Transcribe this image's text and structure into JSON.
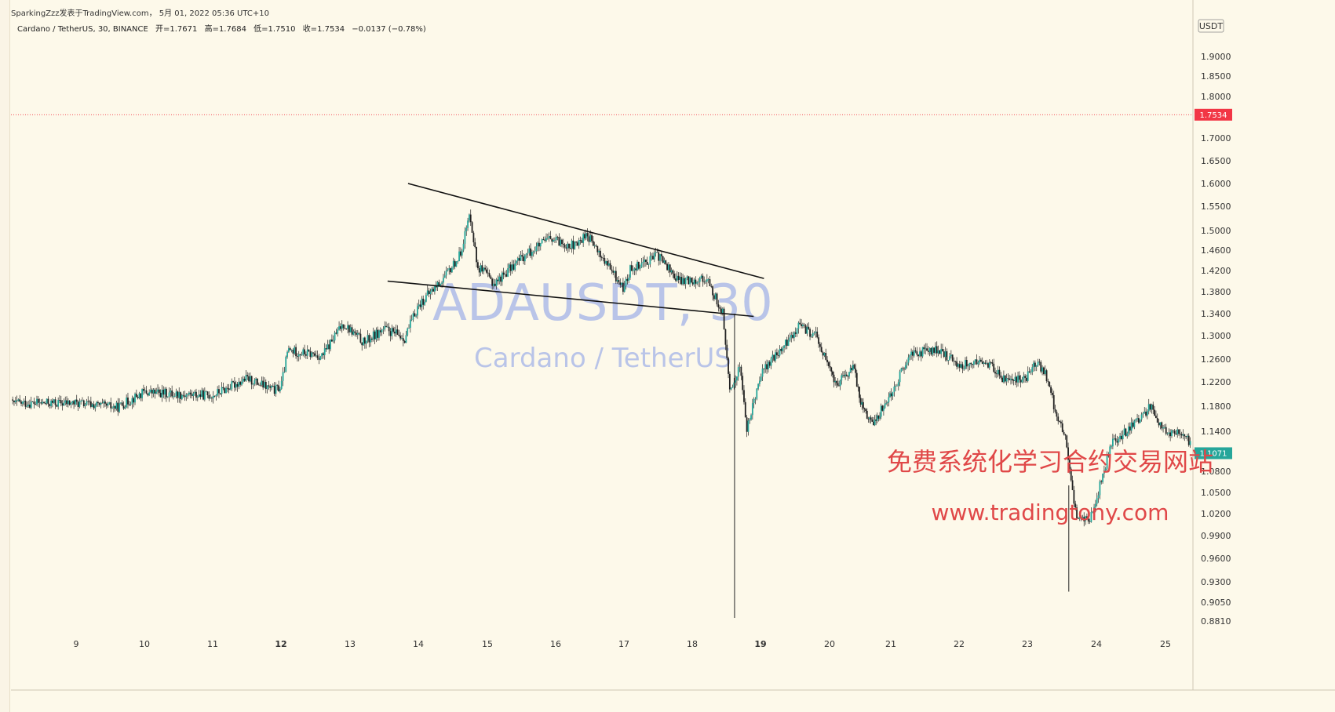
{
  "topbar": {
    "publisher": "SparkingZzz发表于TradingView.com",
    "date": "5月 01, 2022 05:36 UTC+10"
  },
  "legend": {
    "symbol": "Cardano / TetherUS, 30, BINANCE",
    "open": "开=1.7671",
    "high": "高=1.7684",
    "low": "低=1.7510",
    "close": "收=1.7534",
    "change": "−0.0137 (−0.78%)"
  },
  "watermark": {
    "title": "ADAUSDT, 30",
    "subtitle": "Cardano / TetherUS"
  },
  "promo": {
    "line1": "免费系统化学习合约交易网站",
    "line2": "www.tradingtony.com"
  },
  "price_axis": {
    "currency": "USDT",
    "ticks": [
      "1.9000",
      "1.8500",
      "1.8000",
      "1.7000",
      "1.6500",
      "1.6000",
      "1.5500",
      "1.5000",
      "1.4600",
      "1.4200",
      "1.3800",
      "1.3400",
      "1.3000",
      "1.2600",
      "1.2200",
      "1.1800",
      "1.1400",
      "1.0800",
      "1.0500",
      "1.0200",
      "0.9900",
      "0.9600",
      "0.9300",
      "0.9050",
      "0.8810"
    ],
    "last_price": "1.7534",
    "current_price": "1.1071"
  },
  "time_axis": {
    "ticks": [
      "9",
      "10",
      "11",
      "12",
      "13",
      "14",
      "15",
      "16",
      "17",
      "18",
      "19",
      "20",
      "21",
      "22",
      "23",
      "24",
      "25"
    ]
  },
  "colors": {
    "up": "#26a69a",
    "down": "#222222",
    "last_price": "#f23645",
    "current_price": "#26a69a"
  },
  "chart_data": {
    "type": "candlestick",
    "series_path": [
      [
        9,
        1.185
      ],
      [
        9.6,
        1.178
      ],
      [
        10.0,
        1.203
      ],
      [
        10.6,
        1.199
      ],
      [
        11.0,
        1.198
      ],
      [
        11.5,
        1.226
      ],
      [
        11.9,
        1.206
      ],
      [
        12.0,
        1.212
      ],
      [
        12.1,
        1.275
      ],
      [
        12.6,
        1.265
      ],
      [
        12.9,
        1.322
      ],
      [
        13.2,
        1.288
      ],
      [
        13.5,
        1.312
      ],
      [
        13.8,
        1.296
      ],
      [
        14.0,
        1.355
      ],
      [
        14.4,
        1.41
      ],
      [
        14.6,
        1.45
      ],
      [
        14.75,
        1.535
      ],
      [
        14.85,
        1.43
      ],
      [
        15.1,
        1.395
      ],
      [
        15.5,
        1.445
      ],
      [
        15.9,
        1.482
      ],
      [
        16.3,
        1.468
      ],
      [
        16.45,
        1.495
      ],
      [
        16.6,
        1.46
      ],
      [
        17.0,
        1.385
      ],
      [
        17.1,
        1.425
      ],
      [
        17.5,
        1.45
      ],
      [
        17.8,
        1.4
      ],
      [
        18.2,
        1.405
      ],
      [
        18.45,
        1.34
      ],
      [
        18.55,
        1.2
      ],
      [
        18.7,
        1.25
      ],
      [
        18.8,
        1.14
      ],
      [
        19.0,
        1.235
      ],
      [
        19.4,
        1.29
      ],
      [
        19.55,
        1.318
      ],
      [
        19.8,
        1.3
      ],
      [
        20.1,
        1.215
      ],
      [
        20.4,
        1.245
      ],
      [
        20.5,
        1.19
      ],
      [
        20.7,
        1.15
      ],
      [
        21.0,
        1.2
      ],
      [
        21.3,
        1.27
      ],
      [
        21.7,
        1.275
      ],
      [
        22.0,
        1.25
      ],
      [
        22.4,
        1.255
      ],
      [
        22.7,
        1.22
      ],
      [
        23.0,
        1.23
      ],
      [
        23.1,
        1.255
      ],
      [
        23.25,
        1.24
      ],
      [
        23.4,
        1.175
      ],
      [
        23.55,
        1.13
      ],
      [
        23.7,
        1.02
      ],
      [
        23.9,
        1.01
      ],
      [
        24.1,
        1.075
      ],
      [
        24.2,
        1.12
      ],
      [
        24.6,
        1.155
      ],
      [
        24.8,
        1.185
      ],
      [
        24.95,
        1.14
      ],
      [
        25.3,
        1.135
      ],
      [
        25.4,
        1.11
      ]
    ],
    "trendlines": [
      {
        "name": "upper",
        "from": [
          13.85,
          1.6
        ],
        "to": [
          19.05,
          1.405
        ]
      },
      {
        "name": "lower",
        "from": [
          13.55,
          1.4
        ],
        "to": [
          18.9,
          1.335
        ]
      }
    ],
    "extreme_wicks": [
      {
        "x": 18.62,
        "low": 0.885,
        "high": 1.34
      },
      {
        "x": 23.6,
        "low": 0.918,
        "high": 1.06
      }
    ]
  }
}
